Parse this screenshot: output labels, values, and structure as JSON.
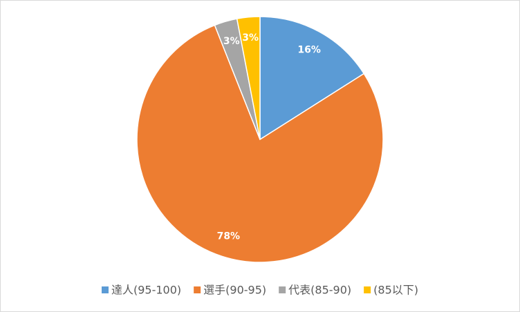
{
  "chart_data": {
    "type": "pie",
    "categories": [
      "達人(95-100)",
      "選手(90-95)",
      "代表(85-90)",
      "(85以下)"
    ],
    "values": [
      16,
      78,
      3,
      3
    ],
    "value_labels": [
      "16%",
      "78%",
      "3%",
      "3%"
    ],
    "colors": [
      "#5b9bd5",
      "#ed7d31",
      "#a5a5a5",
      "#ffc000"
    ],
    "legend": "bottom"
  }
}
